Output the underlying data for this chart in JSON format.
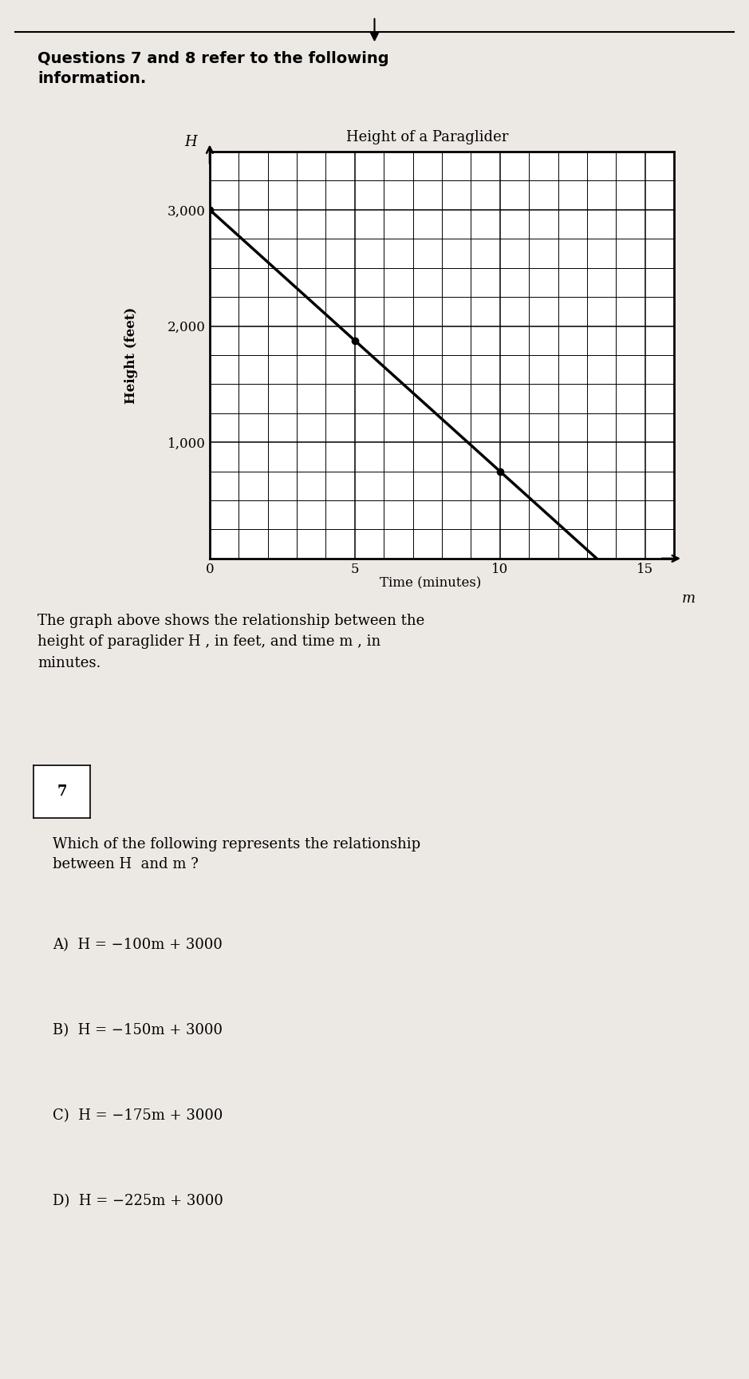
{
  "title_top": "Questions 7 and 8 refer to the following\ninformation.",
  "graph_title": "Height of a Paraglider",
  "ylabel_rotated": "Height (feet)",
  "x_axis_label": "m",
  "y_axis_label": "H",
  "xlim": [
    0,
    16
  ],
  "ylim": [
    0,
    3500
  ],
  "xticks": [
    0,
    5,
    10,
    15
  ],
  "yticks": [
    1000,
    2000,
    3000
  ],
  "ytick_labels": [
    "1,000",
    "2,000",
    "3,000"
  ],
  "slope": -225,
  "intercept": 3000,
  "dot_points": [
    [
      0,
      3000
    ],
    [
      5,
      1875
    ],
    [
      10,
      750
    ]
  ],
  "description": "The graph above shows the relationship between the\nheight of paraglider H , in feet, and time m , in\nminutes.",
  "xlabel_below": "Time (minutes)",
  "question_num": "7",
  "question_text": "Which of the following represents the relationship\nbetween H  and m ?",
  "choices": [
    "A) H = −100m + 3000",
    "B) H = −150m + 3000",
    "C) H = −175m + 3000",
    "D) H = −225m + 3000"
  ],
  "background_color": "#ece9e4",
  "grid_color": "#000000",
  "line_color": "#000000",
  "dot_color": "#000000",
  "text_color": "#000000",
  "gray_bar_color": "#7a7a7a"
}
